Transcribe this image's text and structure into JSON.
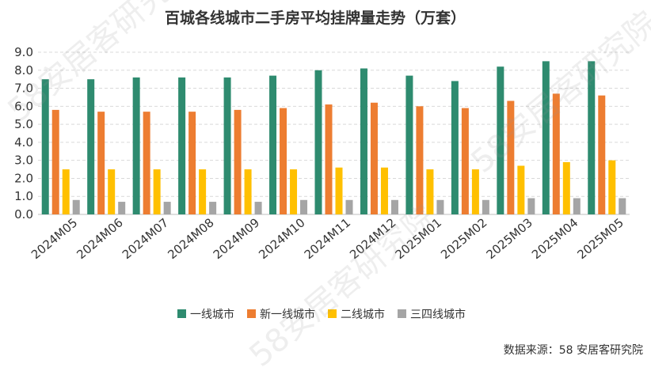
{
  "chart_data": {
    "type": "bar",
    "title": "百城各线城市二手房平均挂牌量走势（万套）",
    "categories": [
      "2024M05",
      "2024M06",
      "2024M07",
      "2024M08",
      "2024M09",
      "2024M10",
      "2024M11",
      "2024M12",
      "2025M01",
      "2025M02",
      "2025M03",
      "2025M04",
      "2025M05"
    ],
    "series": [
      {
        "name": "一线城市",
        "color": "#2E8B6F",
        "values": [
          7.5,
          7.5,
          7.6,
          7.6,
          7.6,
          7.7,
          8.0,
          8.1,
          7.7,
          7.4,
          8.2,
          8.5,
          8.5
        ]
      },
      {
        "name": "新一线城市",
        "color": "#ED7D31",
        "values": [
          5.8,
          5.7,
          5.7,
          5.7,
          5.8,
          5.9,
          6.1,
          6.2,
          6.0,
          5.9,
          6.3,
          6.7,
          6.6
        ]
      },
      {
        "name": "二线城市",
        "color": "#FFC000",
        "values": [
          2.5,
          2.5,
          2.5,
          2.5,
          2.5,
          2.5,
          2.6,
          2.6,
          2.5,
          2.5,
          2.7,
          2.9,
          3.0
        ]
      },
      {
        "name": "三四线城市",
        "color": "#A5A5A5",
        "values": [
          0.8,
          0.7,
          0.7,
          0.7,
          0.7,
          0.8,
          0.8,
          0.8,
          0.8,
          0.8,
          0.9,
          0.9,
          0.9
        ]
      }
    ],
    "ylim": [
      0,
      9
    ],
    "yticks": [
      "0.0",
      "1.0",
      "2.0",
      "3.0",
      "4.0",
      "5.0",
      "6.0",
      "7.0",
      "8.0",
      "9.0"
    ],
    "grid": "dashed-horizontal",
    "legend_position": "bottom"
  },
  "source": "数据来源：58 安居客研究院",
  "watermark_text": "58安居客研究院"
}
